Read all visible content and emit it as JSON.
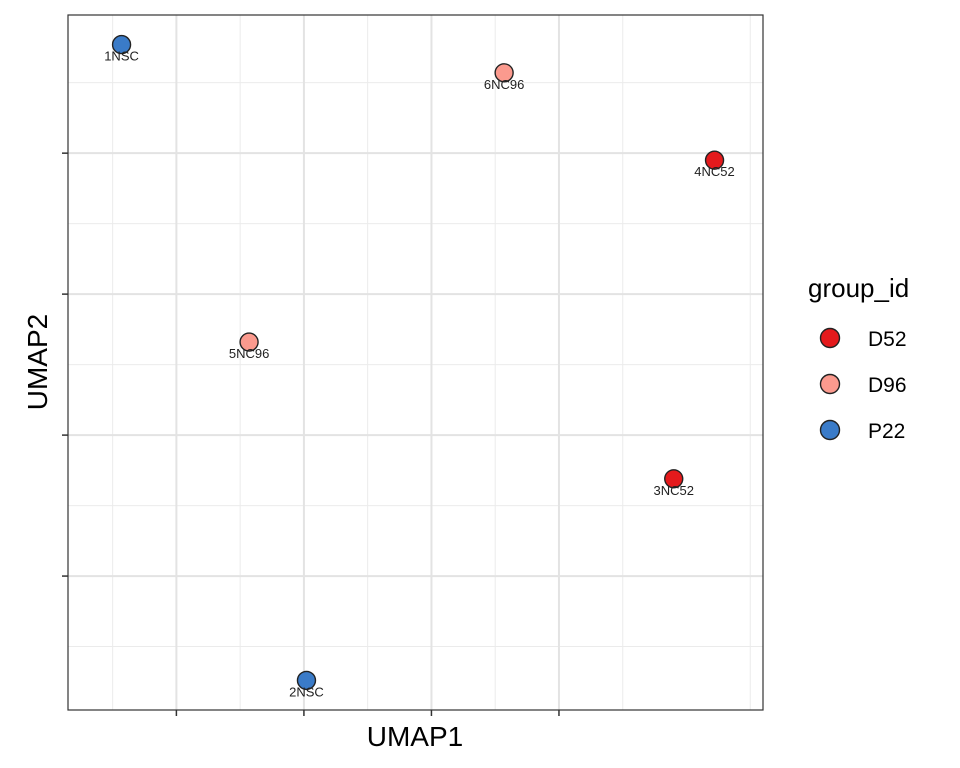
{
  "chart_data": {
    "type": "scatter",
    "xlabel": "UMAP1",
    "ylabel": "UMAP2",
    "grid": true,
    "legend": {
      "title": "group_id",
      "placement": "right",
      "entries": [
        {
          "name": "D52",
          "color": "#E41A1C"
        },
        {
          "name": "D96",
          "color": "#FB9A8E"
        },
        {
          "name": "P22",
          "color": "#3A7BC8"
        }
      ]
    },
    "colors": {
      "D52": "#E41A1C",
      "D96": "#FB9A8E",
      "P22": "#3A7BC8"
    },
    "points": [
      {
        "label": "1NSC",
        "group": "P22",
        "x": -0.43,
        "y": 4.77
      },
      {
        "label": "6NC96",
        "group": "D96",
        "x": 2.57,
        "y": 4.57
      },
      {
        "label": "4NC52",
        "group": "D52",
        "x": 4.22,
        "y": 3.95
      },
      {
        "label": "5NC96",
        "group": "D96",
        "x": 0.57,
        "y": 2.66
      },
      {
        "label": "3NC52",
        "group": "D52",
        "x": 3.9,
        "y": 1.69
      },
      {
        "label": "2NSC",
        "group": "P22",
        "x": 1.02,
        "y": 0.26
      }
    ]
  }
}
